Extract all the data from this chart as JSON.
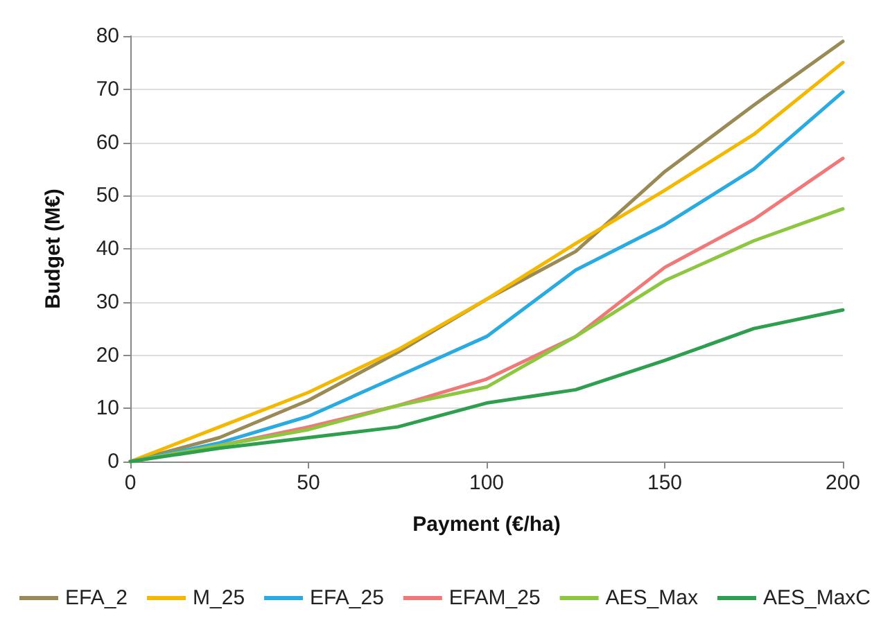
{
  "chart_data": {
    "type": "line",
    "xlabel": "Payment (€/ha)",
    "ylabel": "Budget (M€)",
    "x": [
      0,
      25,
      50,
      75,
      100,
      125,
      150,
      175,
      200
    ],
    "series": [
      {
        "name": "EFA_2",
        "color": "#9a8a55",
        "values": [
          0,
          4.5,
          11.5,
          20.5,
          30.5,
          39.5,
          54.5,
          67,
          79
        ]
      },
      {
        "name": "M_25",
        "color": "#f5b800",
        "values": [
          0,
          6.5,
          13,
          21,
          30.5,
          41,
          51,
          61.5,
          75
        ]
      },
      {
        "name": "EFA_25",
        "color": "#29abe2",
        "values": [
          0,
          3.5,
          8.5,
          16,
          23.5,
          36,
          44.5,
          55,
          69.5
        ]
      },
      {
        "name": "EFAM_25",
        "color": "#f07878",
        "values": [
          0,
          3,
          6.5,
          10.5,
          15.5,
          23.5,
          36.5,
          45.5,
          57
        ]
      },
      {
        "name": "AES_Max",
        "color": "#8dc63f",
        "values": [
          0,
          3,
          6,
          10.5,
          14,
          23.5,
          34,
          41.5,
          47.5
        ]
      },
      {
        "name": "AES_MaxC",
        "color": "#2e9e4f",
        "values": [
          0,
          2.5,
          4.5,
          6.5,
          11,
          13.5,
          19,
          25,
          28.5
        ]
      }
    ],
    "xlim": [
      0,
      200
    ],
    "xticks": [
      0,
      50,
      100,
      150,
      200
    ],
    "ylim": [
      0,
      80
    ],
    "yticks": [
      0,
      10,
      20,
      30,
      40,
      50,
      60,
      70,
      80
    ],
    "grid": "y",
    "legend": "bottom",
    "marker": "none",
    "line_style": "solid"
  }
}
